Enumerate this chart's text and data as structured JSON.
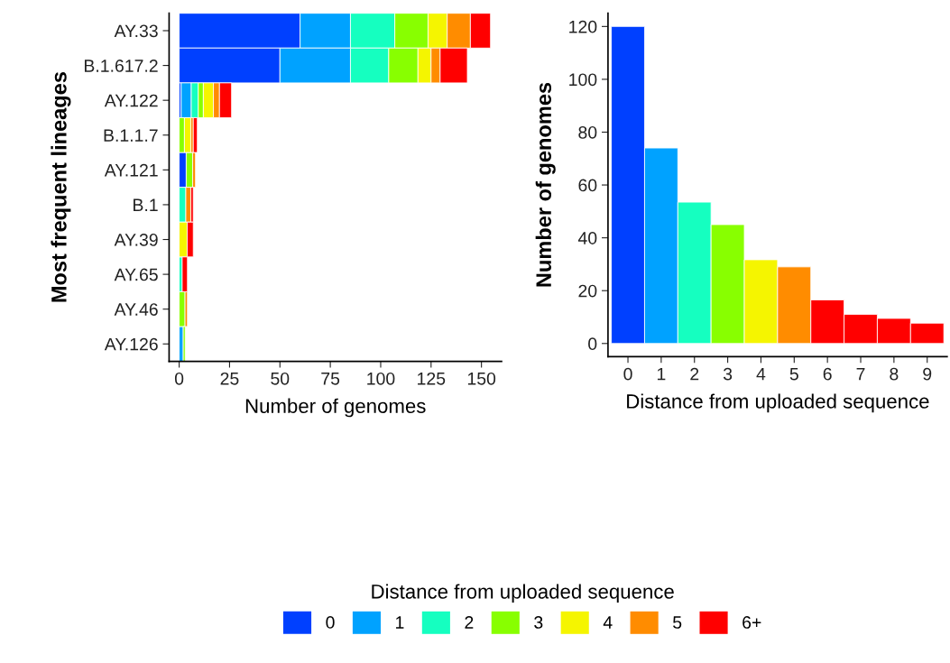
{
  "chart_data": [
    {
      "type": "bar",
      "orientation": "horizontal",
      "stacked": true,
      "xlabel": "Number of genomes",
      "ylabel": "Most frequent lineages",
      "legend_title": "Distance from uploaded sequence",
      "legend": "bottom",
      "grid": false,
      "categories": [
        "AY.33",
        "B.1.617.2",
        "AY.122",
        "B.1.1.7",
        "AY.121",
        "B.1",
        "AY.39",
        "AY.65",
        "AY.46",
        "AY.126"
      ],
      "xlim": [
        -5,
        160
      ],
      "xticks": [
        0,
        25,
        50,
        75,
        100,
        125,
        150
      ],
      "series": [
        {
          "name": "0",
          "color": "#0040ff",
          "values": [
            60,
            50,
            1,
            0,
            3.5,
            0,
            0,
            0,
            0,
            0
          ]
        },
        {
          "name": "1",
          "color": "#00a2ff",
          "values": [
            25,
            35,
            5,
            0,
            0,
            0,
            0,
            0,
            0,
            2
          ]
        },
        {
          "name": "2",
          "color": "#15ffc0",
          "values": [
            22,
            19,
            3.5,
            0,
            0,
            3.3,
            0,
            1.5,
            0,
            0
          ]
        },
        {
          "name": "3",
          "color": "#88ff00",
          "values": [
            16.5,
            14.5,
            2.5,
            2.6,
            3.2,
            0,
            0,
            0,
            2.9,
            1
          ]
        },
        {
          "name": "4",
          "color": "#f5f500",
          "values": [
            9.5,
            6.5,
            5,
            3.2,
            0,
            0,
            4,
            0,
            0,
            0
          ]
        },
        {
          "name": "5",
          "color": "#ff8c00",
          "values": [
            11.5,
            4.5,
            3,
            1.2,
            1.4,
            2.5,
            0,
            0,
            1.2,
            0
          ]
        },
        {
          "name": "6+",
          "color": "#ff0000",
          "values": [
            10,
            13.5,
            6,
            2,
            0,
            1.2,
            3,
            2.6,
            0,
            0
          ]
        }
      ]
    },
    {
      "type": "bar",
      "xlabel": "Distance from uploaded sequence",
      "ylabel": "Number of genomes",
      "grid": false,
      "categories": [
        "0",
        "1",
        "2",
        "3",
        "4",
        "5",
        "6",
        "7",
        "8",
        "9"
      ],
      "values": [
        120,
        74,
        53.5,
        45,
        31.7,
        29,
        16.5,
        11,
        9.5,
        7.7
      ],
      "colors": [
        "#0040ff",
        "#00a2ff",
        "#15ffc0",
        "#88ff00",
        "#f5f500",
        "#ff8c00",
        "#ff0000",
        "#ff0000",
        "#ff0000",
        "#ff0000"
      ],
      "ylim": [
        -5,
        125
      ],
      "yticks": [
        0,
        20,
        40,
        60,
        80,
        100,
        120
      ]
    }
  ]
}
